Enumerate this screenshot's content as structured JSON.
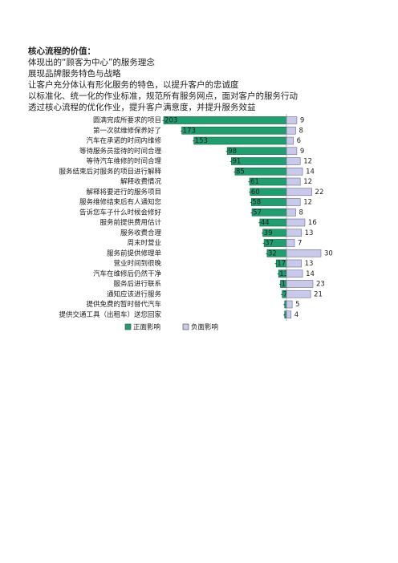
{
  "heading": "核心流程的价值：",
  "lines": [
    "体现出的“顾客为中心”的服务理念",
    "展现品牌服务特色与战略",
    "让客户充分体认有形化服务的特色，以提升客户的忠诚度",
    "以标准化、统一化的作业标准，规范所有服务网点，面对客户的服务行动",
    "透过核心流程的优化作业，提升客户满意度，并提升服务效益"
  ],
  "chart_data": {
    "type": "bar",
    "categories": [
      "圆满完成所要求的项目",
      "第一次就维修保养好了",
      "汽车在承诺的时间内维修",
      "等待服务员接待的时间合理",
      "等待汽车维修的时间合理",
      "服务结束后对服务的项目进行解释",
      "解释收费情况",
      "解释将要进行的服务项目",
      "服务维修结束后有人通知您",
      "告诉您车子什么时候会修好",
      "服务前提供费用估计",
      "服务收费合理",
      "周末时营业",
      "服务前提供修理单",
      "营业时间到很晚",
      "汽车在维修后仍然干净",
      "服务后进行联系",
      "通知应该进行服务",
      "提供免费的暂时替代汽车",
      "提供交通工具（出租车）送您回家"
    ],
    "series": [
      {
        "name": "正面影响",
        "color": "#1f9e6f",
        "values": [
          -203,
          -173,
          -153,
          -98,
          -91,
          -85,
          -61,
          -60,
          -58,
          -57,
          -44,
          -39,
          -37,
          -32,
          -17,
          -13,
          -10,
          -7,
          -3,
          -3
        ]
      },
      {
        "name": "负面影响",
        "color": "#c9c9ec",
        "values": [
          9,
          8,
          6,
          9,
          12,
          14,
          12,
          22,
          12,
          8,
          16,
          13,
          7,
          30,
          13,
          14,
          23,
          21,
          5,
          4
        ]
      }
    ]
  }
}
